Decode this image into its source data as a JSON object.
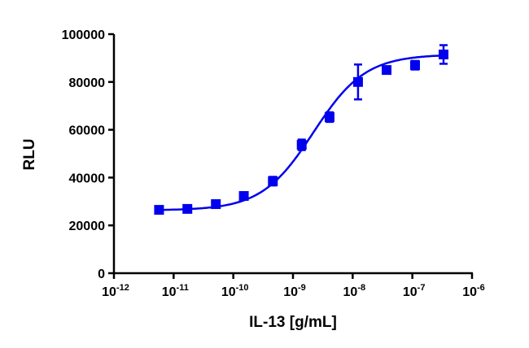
{
  "chart_data": {
    "type": "scatter",
    "title": "",
    "xlabel": "IL-13 [g/mL]",
    "ylabel": "RLU",
    "xscale": "log",
    "xlim": [
      1e-12,
      1e-06
    ],
    "ylim": [
      0,
      100000
    ],
    "x_tick_exponents": [
      "-12",
      "-11",
      "-10",
      "-9",
      "-8",
      "-7",
      "-6"
    ],
    "y_ticks": [
      "0",
      "20000",
      "40000",
      "60000",
      "80000",
      "100000"
    ],
    "grid": false,
    "color": "#0000ee",
    "series": [
      {
        "name": "IL-13",
        "x": [
          5.7e-12,
          1.7e-11,
          5.1e-11,
          1.5e-10,
          4.6e-10,
          1.4e-09,
          4.1e-09,
          1.23e-08,
          3.7e-08,
          1.11e-07,
          3.33e-07
        ],
        "y": [
          26500,
          26900,
          28900,
          32300,
          38500,
          53700,
          65300,
          80000,
          85000,
          87000,
          91500
        ],
        "error": [
          600,
          500,
          600,
          700,
          1800,
          2200,
          2000,
          7300,
          900,
          1800,
          3900
        ]
      }
    ],
    "fit": {
      "model": "4PL",
      "bottom": 26300,
      "top": 91500,
      "ec50": 2.2e-09,
      "hill": 1.0
    }
  }
}
